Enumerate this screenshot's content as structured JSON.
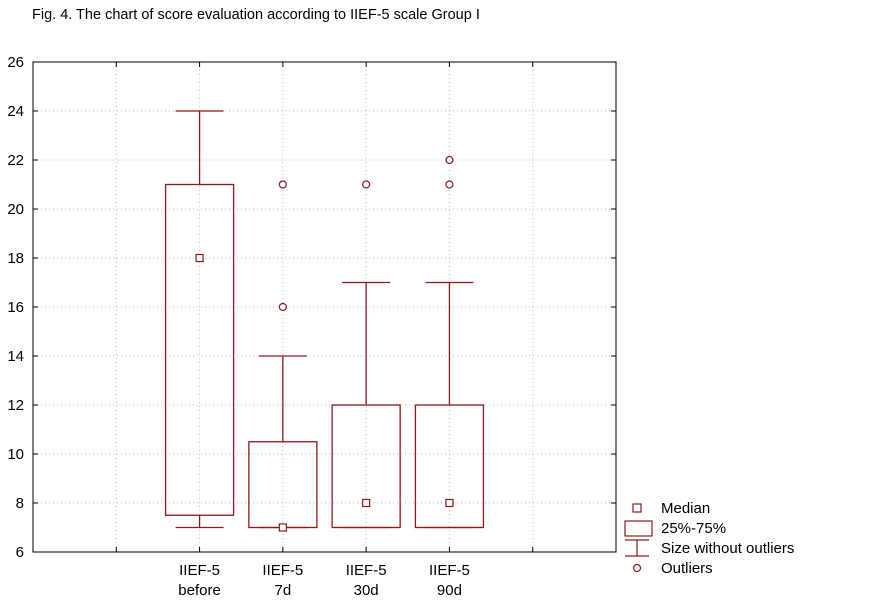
{
  "chart_data": {
    "type": "boxplot",
    "title": "Fig. 4. The chart of score evaluation according to IIEF-5 scale Group I",
    "xlabel": "",
    "ylabel": "",
    "ylim": [
      6,
      26
    ],
    "yticks": [
      6,
      8,
      10,
      12,
      14,
      16,
      18,
      20,
      22,
      24,
      26
    ],
    "grid": true,
    "legend_position": "bottom-right",
    "box_color": "#8b1a1a",
    "categories": [
      [
        "IIEF-5",
        "before"
      ],
      [
        "IIEF-5",
        "7d"
      ],
      [
        "IIEF-5",
        "30d"
      ],
      [
        "IIEF-5",
        "90d"
      ]
    ],
    "boxes": [
      {
        "median": 18,
        "q1": 7.5,
        "q3": 21,
        "whisker_low": 7,
        "whisker_high": 24,
        "outliers": []
      },
      {
        "median": 7,
        "q1": 7,
        "q3": 10.5,
        "whisker_low": 7,
        "whisker_high": 14,
        "outliers": [
          16,
          21
        ]
      },
      {
        "median": 8,
        "q1": 7,
        "q3": 12,
        "whisker_low": 7,
        "whisker_high": 17,
        "outliers": [
          21
        ]
      },
      {
        "median": 8,
        "q1": 7,
        "q3": 12,
        "whisker_low": 7,
        "whisker_high": 17,
        "outliers": [
          21,
          22
        ]
      }
    ],
    "legend": [
      "Median",
      "25%-75%",
      "Size without outliers",
      "Outliers"
    ]
  }
}
